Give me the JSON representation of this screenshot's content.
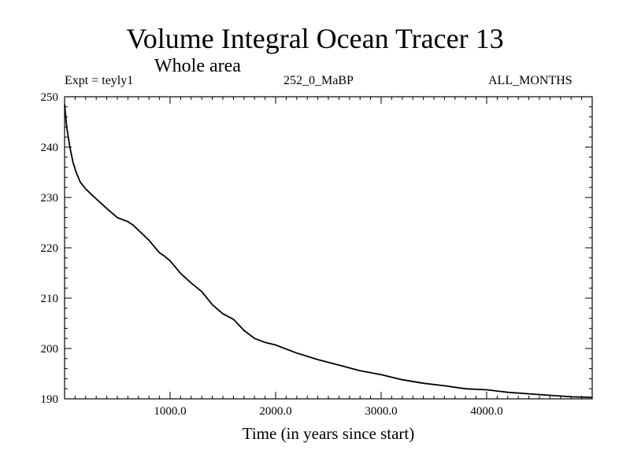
{
  "chart_data": {
    "type": "line",
    "title": "Volume Integral Ocean Tracer 13",
    "subtitle": "Whole area",
    "annotations": {
      "left": "Expt = teyly1",
      "center": "252_0_MaBP",
      "right": "ALL_MONTHS"
    },
    "xlabel": "Time (in years since start)",
    "ylabel": "",
    "xlim": [
      0,
      5000
    ],
    "ylim": [
      190,
      250
    ],
    "xticks": [
      1000,
      2000,
      3000,
      4000
    ],
    "xtick_labels": [
      "1000.0",
      "2000.0",
      "3000.0",
      "4000.0"
    ],
    "yticks": [
      190,
      200,
      210,
      220,
      230,
      240,
      250
    ],
    "ytick_labels": [
      "190",
      "200",
      "210",
      "220",
      "230",
      "240",
      "250"
    ],
    "grid": false,
    "series": [
      {
        "x": [
          0,
          20,
          50,
          80,
          110,
          150,
          200,
          260,
          300,
          400,
          500,
          600,
          650,
          700,
          800,
          900,
          950,
          1000,
          1100,
          1200,
          1300,
          1400,
          1500,
          1600,
          1700,
          1800,
          1900,
          2000,
          2200,
          2400,
          2600,
          2800,
          3000,
          3200,
          3400,
          3600,
          3800,
          4000,
          4200,
          4400,
          4600,
          4800,
          5000
        ],
        "y": [
          248.5,
          244,
          240,
          237,
          235,
          233,
          231.7,
          230.5,
          229.7,
          227.8,
          226,
          225.2,
          224.5,
          223.5,
          221.5,
          219,
          218.3,
          217.4,
          214.9,
          213,
          211.3,
          208.7,
          206.9,
          205.8,
          203.6,
          202,
          201.2,
          200.7,
          199.1,
          197.8,
          196.7,
          195.6,
          194.8,
          193.8,
          193.1,
          192.6,
          192,
          191.8,
          191.3,
          191,
          190.7,
          190.4,
          190.3
        ]
      }
    ]
  }
}
